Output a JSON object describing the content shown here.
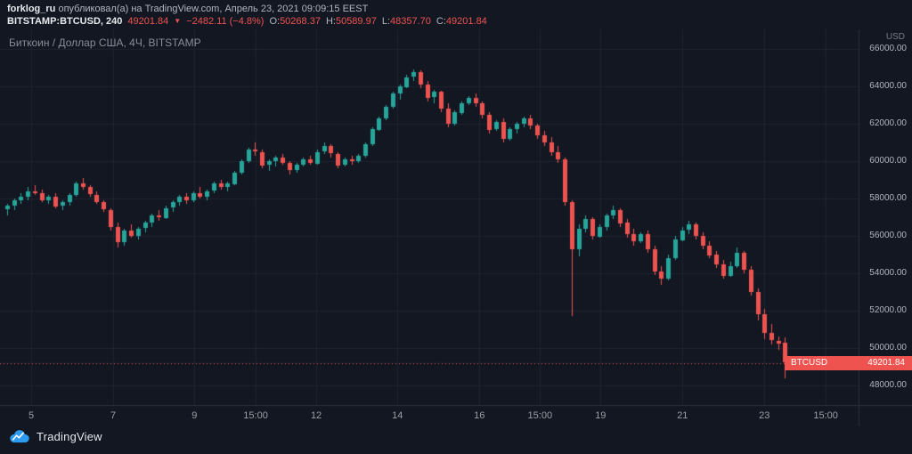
{
  "publish": {
    "author": "forklog_ru",
    "rest": " опубликовал(а) на TradingView.com, Апрель 23, 2021 09:09:15 EEST"
  },
  "legend": {
    "symbol": "BITSTAMP:BTCUSD, 240",
    "last": "49201.84",
    "direction": "▼",
    "change": "−2482.11 (−4.8%)",
    "ohlc": [
      {
        "label": "O:",
        "value": "50268.37"
      },
      {
        "label": "H:",
        "value": "50589.97"
      },
      {
        "label": "L:",
        "value": "48357.70"
      },
      {
        "label": "C:",
        "value": "49201.84"
      }
    ]
  },
  "chart": {
    "title": "Биткоин / Доллар США, 4Ч, BITSTAMP",
    "axis_currency": "USD",
    "price_badge": {
      "symbol": "BTCUSD",
      "price": "49201.84"
    }
  },
  "footer": {
    "brand": "TradingView"
  },
  "colors": {
    "bg": "#131722",
    "up": "#26a69a",
    "down": "#ef5350",
    "grid": "#1e2430",
    "axis_border": "#2a2e39",
    "axis_text": "#b2b5be",
    "badge_bg": "#ef5350",
    "brand_blue": "#2d9bf0"
  },
  "chart_data": {
    "type": "candlestick",
    "title": "Биткоин / Доллар США, 4Ч, BITSTAMP",
    "symbol": "BITSTAMP:BTCUSD",
    "interval_minutes": 240,
    "last_price": 49201.84,
    "ohlc_current": {
      "o": 50268.37,
      "h": 50589.97,
      "l": 48357.7,
      "c": 49201.84
    },
    "change": {
      "abs": -2482.11,
      "pct": -4.8
    },
    "price_axis": {
      "unit": "USD",
      "visible_min": 47000,
      "visible_max": 67000,
      "ticks": [
        66000,
        64000,
        62000,
        60000,
        58000,
        56000,
        54000,
        52000,
        50000,
        48000
      ]
    },
    "time_labels": [
      {
        "text": "5",
        "pos": 3.5
      },
      {
        "text": "7",
        "pos": 15.4
      },
      {
        "text": "9",
        "pos": 27.2
      },
      {
        "text": "15:00",
        "pos": 36.1
      },
      {
        "text": "12",
        "pos": 44.9
      },
      {
        "text": "14",
        "pos": 56.7
      },
      {
        "text": "16",
        "pos": 68.6
      },
      {
        "text": "15:00",
        "pos": 77.4
      },
      {
        "text": "19",
        "pos": 86.2
      },
      {
        "text": "21",
        "pos": 98.1
      },
      {
        "text": "23",
        "pos": 110
      },
      {
        "text": "15:00",
        "pos": 118.9
      }
    ],
    "candles": [
      [
        57400,
        57700,
        57100,
        57600
      ],
      [
        57600,
        58000,
        57400,
        57900
      ],
      [
        57900,
        58300,
        57700,
        58100
      ],
      [
        58100,
        58600,
        57900,
        58400
      ],
      [
        58400,
        58700,
        58200,
        58300
      ],
      [
        58300,
        58500,
        57800,
        57900
      ],
      [
        57900,
        58200,
        57700,
        58100
      ],
      [
        58100,
        58300,
        57500,
        57600
      ],
      [
        57600,
        57900,
        57400,
        57800
      ],
      [
        57800,
        58300,
        57600,
        58200
      ],
      [
        58200,
        58900,
        58100,
        58800
      ],
      [
        58800,
        59100,
        58500,
        58600
      ],
      [
        58600,
        58700,
        58100,
        58200
      ],
      [
        58200,
        58400,
        57700,
        57800
      ],
      [
        57800,
        57900,
        57300,
        57400
      ],
      [
        57400,
        57500,
        56300,
        56500
      ],
      [
        56500,
        56700,
        55400,
        55700
      ],
      [
        55700,
        56400,
        55500,
        56300
      ],
      [
        56300,
        56600,
        55900,
        56000
      ],
      [
        56000,
        56500,
        55800,
        56400
      ],
      [
        56400,
        56800,
        56200,
        56700
      ],
      [
        56700,
        57200,
        56500,
        57100
      ],
      [
        57100,
        57400,
        56800,
        57000
      ],
      [
        57000,
        57600,
        56900,
        57500
      ],
      [
        57500,
        57900,
        57300,
        57800
      ],
      [
        57800,
        58200,
        57600,
        58100
      ],
      [
        58100,
        58300,
        57700,
        57900
      ],
      [
        57900,
        58400,
        57800,
        58300
      ],
      [
        58300,
        58600,
        58000,
        58100
      ],
      [
        58100,
        58500,
        57900,
        58400
      ],
      [
        58400,
        58900,
        58300,
        58800
      ],
      [
        58800,
        59000,
        58500,
        58600
      ],
      [
        58600,
        58900,
        58400,
        58800
      ],
      [
        58800,
        59500,
        58700,
        59400
      ],
      [
        59400,
        60100,
        59300,
        60000
      ],
      [
        60000,
        60700,
        59900,
        60600
      ],
      [
        60600,
        61000,
        60300,
        60500
      ],
      [
        60500,
        60600,
        59600,
        59800
      ],
      [
        59800,
        60100,
        59500,
        60000
      ],
      [
        60000,
        60300,
        59700,
        60200
      ],
      [
        60200,
        60400,
        59800,
        59900
      ],
      [
        59900,
        60000,
        59300,
        59500
      ],
      [
        59500,
        59900,
        59400,
        59800
      ],
      [
        59800,
        60200,
        59700,
        60100
      ],
      [
        60100,
        60300,
        59800,
        59900
      ],
      [
        59900,
        60600,
        59800,
        60500
      ],
      [
        60500,
        61000,
        60400,
        60800
      ],
      [
        60800,
        60900,
        60200,
        60400
      ],
      [
        60400,
        60500,
        59600,
        59800
      ],
      [
        59800,
        60200,
        59700,
        60100
      ],
      [
        60100,
        60300,
        59800,
        60000
      ],
      [
        60000,
        60400,
        59900,
        60300
      ],
      [
        60300,
        61000,
        60200,
        60900
      ],
      [
        60900,
        61800,
        60800,
        61700
      ],
      [
        61700,
        62400,
        61600,
        62300
      ],
      [
        62300,
        63000,
        62200,
        62900
      ],
      [
        62900,
        63700,
        62800,
        63600
      ],
      [
        63600,
        64100,
        63300,
        64000
      ],
      [
        64000,
        64600,
        63900,
        64500
      ],
      [
        64500,
        64900,
        64300,
        64750
      ],
      [
        64750,
        64850,
        63900,
        64100
      ],
      [
        64100,
        64300,
        63200,
        63400
      ],
      [
        63400,
        63800,
        63100,
        63700
      ],
      [
        63700,
        63750,
        62600,
        62800
      ],
      [
        62800,
        63100,
        61800,
        62000
      ],
      [
        62000,
        62700,
        61900,
        62600
      ],
      [
        62600,
        63200,
        62500,
        63100
      ],
      [
        63100,
        63500,
        63000,
        63400
      ],
      [
        63400,
        63600,
        62900,
        63100
      ],
      [
        63100,
        63200,
        62300,
        62500
      ],
      [
        62500,
        62600,
        61500,
        61700
      ],
      [
        61700,
        62200,
        61600,
        62100
      ],
      [
        62100,
        62300,
        61000,
        61200
      ],
      [
        61200,
        61800,
        61100,
        61700
      ],
      [
        61700,
        62100,
        61500,
        62000
      ],
      [
        62000,
        62400,
        61800,
        62300
      ],
      [
        62300,
        62500,
        61700,
        61900
      ],
      [
        61900,
        62000,
        61200,
        61400
      ],
      [
        61400,
        61600,
        60800,
        61000
      ],
      [
        61000,
        61300,
        60300,
        60500
      ],
      [
        60500,
        60800,
        59900,
        60100
      ],
      [
        60100,
        60200,
        57600,
        57800
      ],
      [
        57800,
        57900,
        51700,
        55300
      ],
      [
        55300,
        56600,
        54900,
        56400
      ],
      [
        56400,
        57100,
        56200,
        56900
      ],
      [
        56900,
        57000,
        55800,
        56000
      ],
      [
        56000,
        56600,
        55900,
        56500
      ],
      [
        56500,
        57200,
        56300,
        57100
      ],
      [
        57100,
        57600,
        56900,
        57400
      ],
      [
        57400,
        57500,
        56500,
        56700
      ],
      [
        56700,
        56900,
        55900,
        56100
      ],
      [
        56100,
        56400,
        55500,
        55700
      ],
      [
        55700,
        56200,
        55600,
        56100
      ],
      [
        56100,
        56300,
        55100,
        55300
      ],
      [
        55300,
        55500,
        53900,
        54100
      ],
      [
        54100,
        54400,
        53400,
        53700
      ],
      [
        53700,
        55000,
        53600,
        54800
      ],
      [
        54800,
        56000,
        54700,
        55800
      ],
      [
        55800,
        56500,
        55700,
        56300
      ],
      [
        56300,
        56800,
        56100,
        56600
      ],
      [
        56600,
        56700,
        55800,
        56000
      ],
      [
        56000,
        56200,
        55300,
        55500
      ],
      [
        55500,
        55700,
        54800,
        55000
      ],
      [
        55000,
        55200,
        54300,
        54500
      ],
      [
        54500,
        54700,
        53700,
        53900
      ],
      [
        53900,
        54600,
        53800,
        54400
      ],
      [
        54400,
        55400,
        54300,
        55100
      ],
      [
        55100,
        55200,
        54000,
        54200
      ],
      [
        54200,
        54400,
        52800,
        53000
      ],
      [
        53000,
        53200,
        51500,
        51800
      ],
      [
        51800,
        52100,
        50500,
        50800
      ],
      [
        50800,
        51300,
        50200,
        50400
      ],
      [
        50400,
        50600,
        49900,
        50268
      ],
      [
        50268.37,
        50589.97,
        48357.7,
        49201.84
      ]
    ]
  }
}
